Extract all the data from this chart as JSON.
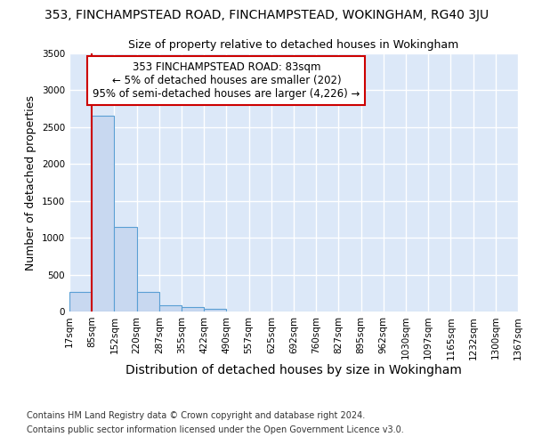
{
  "title1": "353, FINCHAMPSTEAD ROAD, FINCHAMPSTEAD, WOKINGHAM, RG40 3JU",
  "title2": "Size of property relative to detached houses in Wokingham",
  "xlabel": "Distribution of detached houses by size in Wokingham",
  "ylabel": "Number of detached properties",
  "bin_labels": [
    "17sqm",
    "85sqm",
    "152sqm",
    "220sqm",
    "287sqm",
    "355sqm",
    "422sqm",
    "490sqm",
    "557sqm",
    "625sqm",
    "692sqm",
    "760sqm",
    "827sqm",
    "895sqm",
    "962sqm",
    "1030sqm",
    "1097sqm",
    "1165sqm",
    "1232sqm",
    "1300sqm",
    "1367sqm"
  ],
  "bar_heights": [
    270,
    2650,
    1150,
    270,
    90,
    55,
    35,
    0,
    0,
    0,
    0,
    0,
    0,
    0,
    0,
    0,
    0,
    0,
    0,
    0
  ],
  "bar_color": "#c8d8f0",
  "bar_edge_color": "#5a9fd4",
  "vline_color": "#cc0000",
  "annotation_box_color": "#ffffff",
  "annotation_box_edge": "#cc0000",
  "annotation_line1": "353 FINCHAMPSTEAD ROAD: 83sqm",
  "annotation_line2": "← 5% of detached houses are smaller (202)",
  "annotation_line3": "95% of semi-detached houses are larger (4,226) →",
  "ylim": [
    0,
    3500
  ],
  "yticks": [
    0,
    500,
    1000,
    1500,
    2000,
    2500,
    3000,
    3500
  ],
  "footnote1": "Contains HM Land Registry data © Crown copyright and database right 2024.",
  "footnote2": "Contains public sector information licensed under the Open Government Licence v3.0.",
  "fig_bg_color": "#ffffff",
  "plot_bg_color": "#dce8f8",
  "grid_color": "#ffffff",
  "title1_fontsize": 10,
  "title2_fontsize": 9,
  "axis_label_fontsize": 9,
  "tick_fontsize": 7.5,
  "footnote_fontsize": 7
}
